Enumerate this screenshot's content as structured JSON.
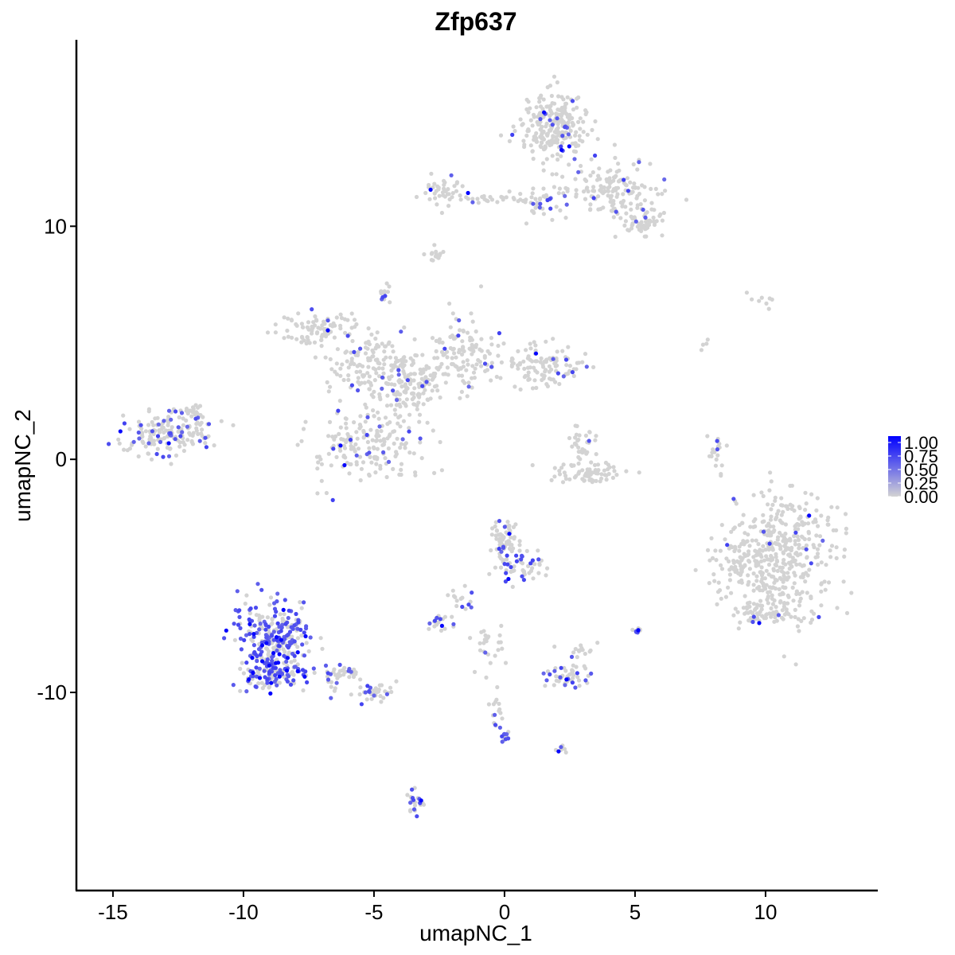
{
  "chart_data": {
    "type": "scatter",
    "title": "Zfp637",
    "xlabel": "umapNC_1",
    "ylabel": "umapNC_2",
    "xlim": [
      -16.4,
      14.3
    ],
    "ylim": [
      -18.5,
      18.0
    ],
    "x_ticks": [
      -15,
      -10,
      -5,
      0,
      5,
      10
    ],
    "x_tick_labels": [
      "-15",
      "-10",
      "-5",
      "0",
      "5",
      "10"
    ],
    "y_ticks": [
      -10,
      0,
      10
    ],
    "y_tick_labels": [
      "-10",
      "0",
      "10"
    ],
    "grid": false,
    "legend_position": "right",
    "color_scale": {
      "low_color": "#d3d3d3",
      "high_color": "#0000ff",
      "min": 0.0,
      "max": 1.0,
      "breaks": [
        1.0,
        0.75,
        0.5,
        0.25,
        0.0
      ],
      "break_labels": [
        "1.00",
        "0.75",
        "0.50",
        "0.25",
        "0.00"
      ]
    },
    "clusters": [
      {
        "cx": 1.9,
        "cy": 14.2,
        "rx": 1.2,
        "ry": 1.3,
        "n": 260,
        "expr_frac": 0.08
      },
      {
        "cx": 4.2,
        "cy": 11.5,
        "rx": 1.5,
        "ry": 1.2,
        "n": 150,
        "expr_frac": 0.08
      },
      {
        "cx": 5.3,
        "cy": 10.1,
        "rx": 0.8,
        "ry": 0.5,
        "n": 50,
        "expr_frac": 0.08
      },
      {
        "cx": -2.4,
        "cy": 11.5,
        "rx": 0.8,
        "ry": 0.5,
        "n": 40,
        "expr_frac": 0.1
      },
      {
        "cx": -0.3,
        "cy": 11.2,
        "rx": 1.7,
        "ry": 0.2,
        "n": 30,
        "expr_frac": 0.1
      },
      {
        "cx": 1.6,
        "cy": 11.0,
        "rx": 0.8,
        "ry": 0.6,
        "n": 40,
        "expr_frac": 0.1
      },
      {
        "cx": -2.7,
        "cy": 8.8,
        "rx": 0.3,
        "ry": 0.4,
        "n": 15,
        "expr_frac": 0.0
      },
      {
        "cx": -4.6,
        "cy": 7.2,
        "rx": 0.2,
        "ry": 0.3,
        "n": 15,
        "expr_frac": 0.2
      },
      {
        "cx": -7.1,
        "cy": 5.6,
        "rx": 1.3,
        "ry": 0.6,
        "n": 90,
        "expr_frac": 0.03
      },
      {
        "cx": -5.2,
        "cy": 4.0,
        "rx": 1.6,
        "ry": 1.4,
        "n": 150,
        "expr_frac": 0.04
      },
      {
        "cx": -3.6,
        "cy": 3.2,
        "rx": 1.2,
        "ry": 1.2,
        "n": 120,
        "expr_frac": 0.05
      },
      {
        "cx": -1.5,
        "cy": 4.5,
        "rx": 1.1,
        "ry": 1.4,
        "n": 120,
        "expr_frac": 0.05
      },
      {
        "cx": 1.5,
        "cy": 4.1,
        "rx": 1.4,
        "ry": 0.8,
        "n": 110,
        "expr_frac": 0.05
      },
      {
        "cx": -5.3,
        "cy": 0.6,
        "rx": 1.9,
        "ry": 1.4,
        "n": 190,
        "expr_frac": 0.12
      },
      {
        "cx": -12.9,
        "cy": 1.1,
        "rx": 1.5,
        "ry": 1.0,
        "n": 170,
        "expr_frac": 0.2
      },
      {
        "cx": -11.8,
        "cy": 2.0,
        "rx": 0.5,
        "ry": 0.5,
        "n": 20,
        "expr_frac": 0.1
      },
      {
        "cx": 3.0,
        "cy": 0.6,
        "rx": 0.5,
        "ry": 0.6,
        "n": 30,
        "expr_frac": 0.02
      },
      {
        "cx": 3.2,
        "cy": -0.6,
        "rx": 1.3,
        "ry": 0.4,
        "n": 70,
        "expr_frac": 0.02
      },
      {
        "cx": 8.1,
        "cy": 0.2,
        "rx": 0.3,
        "ry": 0.9,
        "n": 20,
        "expr_frac": 0.1
      },
      {
        "cx": 10.5,
        "cy": -4.2,
        "rx": 1.9,
        "ry": 2.4,
        "n": 450,
        "expr_frac": 0.03
      },
      {
        "cx": 8.8,
        "cy": -4.6,
        "rx": 0.5,
        "ry": 0.6,
        "n": 25,
        "expr_frac": 0.03
      },
      {
        "cx": 9.9,
        "cy": -6.6,
        "rx": 1.2,
        "ry": 0.5,
        "n": 60,
        "expr_frac": 0.03
      },
      {
        "cx": -8.8,
        "cy": -7.6,
        "rx": 1.3,
        "ry": 1.5,
        "n": 260,
        "expr_frac": 0.55
      },
      {
        "cx": -8.9,
        "cy": -9.3,
        "rx": 1.3,
        "ry": 0.6,
        "n": 120,
        "expr_frac": 0.45
      },
      {
        "cx": -6.4,
        "cy": -9.3,
        "rx": 0.8,
        "ry": 0.5,
        "n": 40,
        "expr_frac": 0.2
      },
      {
        "cx": -5.0,
        "cy": -10.0,
        "rx": 0.7,
        "ry": 0.4,
        "n": 35,
        "expr_frac": 0.25
      },
      {
        "cx": 0.0,
        "cy": -3.4,
        "rx": 0.5,
        "ry": 0.7,
        "n": 60,
        "expr_frac": 0.15
      },
      {
        "cx": 0.6,
        "cy": -4.6,
        "rx": 0.9,
        "ry": 0.6,
        "n": 60,
        "expr_frac": 0.25
      },
      {
        "cx": -1.6,
        "cy": -6.0,
        "rx": 0.5,
        "ry": 0.5,
        "n": 15,
        "expr_frac": 0.3
      },
      {
        "cx": -2.5,
        "cy": -7.0,
        "rx": 0.4,
        "ry": 0.3,
        "n": 20,
        "expr_frac": 0.2
      },
      {
        "cx": 2.4,
        "cy": -9.3,
        "rx": 0.7,
        "ry": 0.5,
        "n": 50,
        "expr_frac": 0.3
      },
      {
        "cx": 2.8,
        "cy": -8.2,
        "rx": 0.6,
        "ry": 0.3,
        "n": 15,
        "expr_frac": 0.1
      },
      {
        "cx": -0.3,
        "cy": -10.7,
        "rx": 0.2,
        "ry": 0.7,
        "n": 15,
        "expr_frac": 0.1
      },
      {
        "cx": 0.0,
        "cy": -11.9,
        "rx": 0.2,
        "ry": 0.3,
        "n": 12,
        "expr_frac": 0.5
      },
      {
        "cx": 2.2,
        "cy": -12.4,
        "rx": 0.3,
        "ry": 0.2,
        "n": 8,
        "expr_frac": 0.3
      },
      {
        "cx": -3.4,
        "cy": -14.8,
        "rx": 0.3,
        "ry": 0.6,
        "n": 25,
        "expr_frac": 0.4
      },
      {
        "cx": -0.5,
        "cy": -8.1,
        "rx": 0.6,
        "ry": 0.8,
        "n": 25,
        "expr_frac": 0.05
      },
      {
        "cx": 5.1,
        "cy": -7.3,
        "rx": 0.2,
        "ry": 0.2,
        "n": 10,
        "expr_frac": 0.5
      },
      {
        "cx": 10.0,
        "cy": 6.8,
        "rx": 1.1,
        "ry": 0.3,
        "n": 8,
        "expr_frac": 0.0
      },
      {
        "cx": 7.7,
        "cy": 4.9,
        "rx": 0.2,
        "ry": 0.3,
        "n": 4,
        "expr_frac": 0.0
      }
    ]
  }
}
